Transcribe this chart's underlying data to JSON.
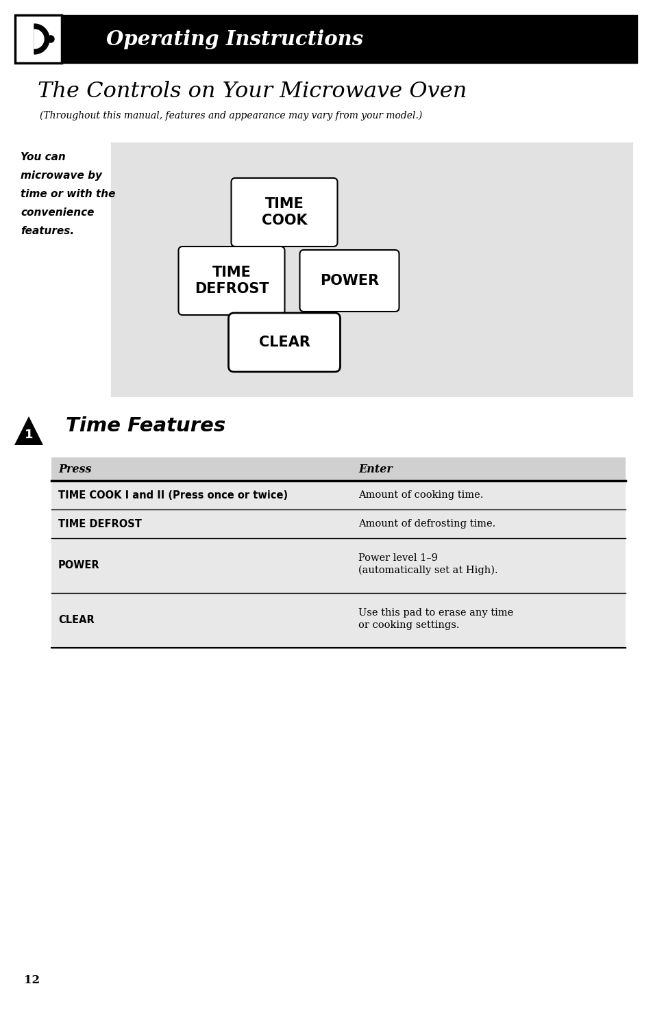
{
  "page_bg": "#ffffff",
  "header_bg": "#000000",
  "header_text": "Operating Instructions",
  "header_text_color": "#ffffff",
  "title_text": "The Controls on Your Microwave Oven",
  "subtitle_text": "(Throughout this manual, features and appearance may vary from your model.)",
  "side_note": "You can\nmicrowave by\ntime or with the\nconvenience\nfeatures.",
  "panel_bg": "#e2e2e2",
  "button_bg": "#ffffff",
  "section_title": "Time Features",
  "section_number": "1",
  "table_header_bg": "#d0d0d0",
  "table_row_bg": "#e8e8e8",
  "table_col1_header": "Press",
  "table_col2_header": "Enter",
  "table_rows": [
    [
      "TIME COOK I and II (Press once or twice)",
      "Amount of cooking time."
    ],
    [
      "TIME DEFROST",
      "Amount of defrosting time."
    ],
    [
      "POWER",
      "Power level 1–9\n(automatically set at High)."
    ],
    [
      "CLEAR",
      "Use this pad to erase any time\nor cooking settings."
    ]
  ],
  "footer_page": "12"
}
